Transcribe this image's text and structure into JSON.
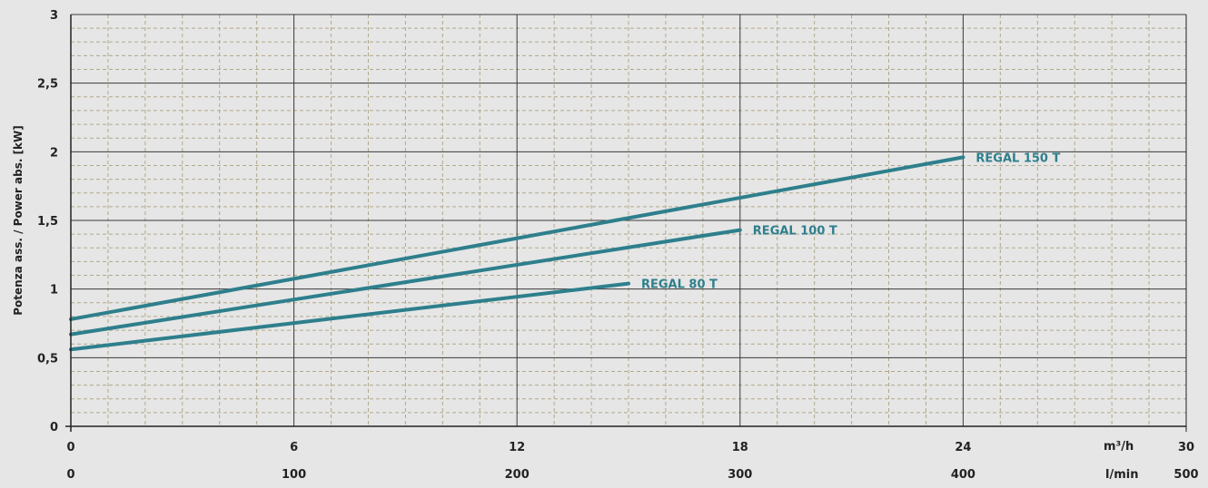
{
  "chart_data": {
    "type": "line",
    "title": "",
    "ylabel": "Potenza ass. / Power abs. [kW]",
    "ylim": [
      0,
      3
    ],
    "yticks": [
      "0",
      "0,5",
      "1",
      "1,5",
      "2",
      "2,5",
      "3"
    ],
    "yticks_values": [
      0,
      0.5,
      1,
      1.5,
      2,
      2.5,
      3
    ],
    "x_axis_primary": {
      "unit": "m³/h",
      "range": [
        0,
        30
      ],
      "ticks": [
        "0",
        "6",
        "12",
        "18",
        "24",
        "30"
      ],
      "ticks_values": [
        0,
        6,
        12,
        18,
        24,
        30
      ]
    },
    "x_axis_secondary": {
      "unit": "l/min",
      "range": [
        0,
        500
      ],
      "ticks": [
        "0",
        "100",
        "200",
        "300",
        "400",
        "500"
      ],
      "ticks_values": [
        0,
        100,
        200,
        300,
        400,
        500
      ]
    },
    "grid": true,
    "series": [
      {
        "name": "REGAL 150 T",
        "x": [
          0,
          24
        ],
        "y": [
          0.78,
          1.96
        ]
      },
      {
        "name": "REGAL 100 T",
        "x": [
          0,
          18
        ],
        "y": [
          0.67,
          1.43
        ]
      },
      {
        "name": "REGAL 80 T",
        "x": [
          0,
          15
        ],
        "y": [
          0.56,
          1.04
        ]
      }
    ],
    "colors": {
      "series": "#2e7f8c",
      "background": "#e6e6e6",
      "major_grid": "#3a3a3a",
      "minor_grid": "#b0a98a"
    }
  }
}
